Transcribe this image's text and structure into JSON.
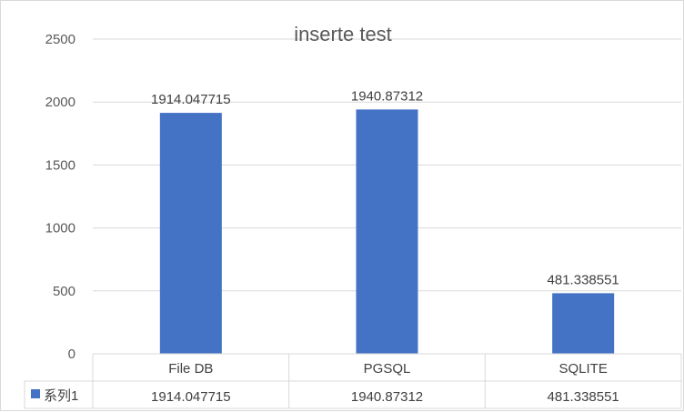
{
  "chart_data": {
    "type": "bar",
    "title": "inserte test",
    "categories": [
      "File DB",
      "PGSQL",
      "SQLITE"
    ],
    "series": [
      {
        "name": "系列1",
        "values": [
          1914.047715,
          1940.87312,
          481.338551
        ],
        "labels": [
          "1914.047715",
          "1940.87312",
          "481.338551"
        ]
      }
    ],
    "ylim": [
      0,
      2500
    ],
    "yticks": [
      0,
      500,
      1000,
      1500,
      2000,
      2500
    ],
    "grid": true,
    "legend": "data-table",
    "data_table": true,
    "colors": {
      "bar": "#4472c4",
      "grid": "#d9d9d9",
      "text": "#595959"
    }
  }
}
